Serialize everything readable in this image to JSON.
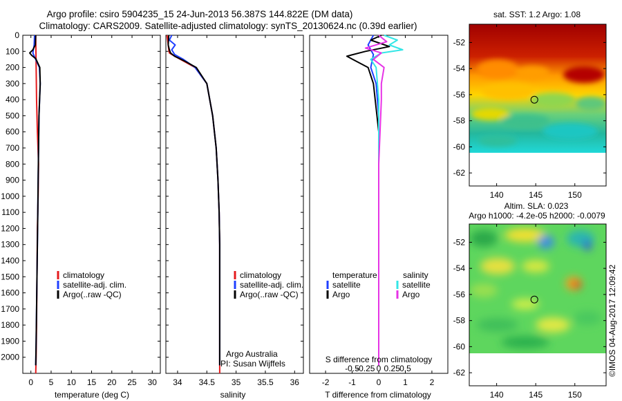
{
  "header": {
    "line1": "Argo profile: csiro 5904235_15 24-Jun-2013 56.387S 144.822E (DM data)",
    "line2": "Climatology: CARS2009. Satellite-adjusted climatology: synTS_20130624.nc (0.39d earlier)"
  },
  "watermark": "©IMOS 04-Aug-2017 12:09:42",
  "colors": {
    "climatology": "#e41a1c",
    "satellite": "#1f3fff",
    "argo": "#000000",
    "salinity_satellite": "#33e6e6",
    "salinity_argo": "#e633e6"
  },
  "chart_data": [
    {
      "type": "line",
      "xlabel": "temperature (deg C)",
      "xlim": [
        -2,
        32
      ],
      "ylim": [
        0,
        2100
      ],
      "xticks": [
        "0",
        "5",
        "10",
        "15",
        "20",
        "25",
        "30"
      ],
      "yticks": [
        "0",
        "100",
        "200",
        "300",
        "400",
        "500",
        "600",
        "700",
        "800",
        "900",
        "1000",
        "1100",
        "1200",
        "1300",
        "1400",
        "1500",
        "1600",
        "1700",
        "1800",
        "1900",
        "2000"
      ],
      "y_inverted": true,
      "legend": [
        "climatology",
        "satellite-adj. clim.",
        "Argo(..raw -QC)"
      ],
      "legend_placement": "lower-center",
      "series": [
        {
          "name": "climatology",
          "color": "climatology",
          "x": [
            1.2,
            1.3,
            1.4,
            1.6,
            1.9,
            1.8,
            1.6,
            1.5,
            1.4,
            1.3,
            1.2
          ],
          "y": [
            0,
            200,
            400,
            600,
            800,
            1000,
            1200,
            1500,
            1800,
            2000,
            2100
          ]
        },
        {
          "name": "satellite-adj. clim.",
          "color": "satellite",
          "x": [
            0.9,
            0.8,
            0.5,
            1.0,
            2.1,
            2.3,
            2.0,
            1.9,
            1.8,
            1.7,
            1.6,
            1.5,
            1.4,
            1.3,
            1.2
          ],
          "y": [
            0,
            60,
            110,
            140,
            200,
            300,
            500,
            700,
            900,
            1100,
            1300,
            1500,
            1700,
            1900,
            2050
          ]
        },
        {
          "name": "Argo(..raw -QC)",
          "color": "argo",
          "x": [
            1.2,
            1.1,
            0.5,
            -0.3,
            0.2,
            1.2,
            2.2,
            2.3,
            2.0,
            1.9,
            1.8,
            1.7,
            1.6,
            1.5,
            1.4,
            1.3,
            1.2
          ],
          "y": [
            0,
            60,
            90,
            110,
            125,
            145,
            200,
            300,
            500,
            700,
            900,
            1100,
            1300,
            1500,
            1700,
            1900,
            2050
          ]
        }
      ]
    },
    {
      "type": "line",
      "xlabel": "salinity",
      "xlim": [
        33.8,
        36.15
      ],
      "ylim": [
        0,
        2100
      ],
      "xticks": [
        "34",
        "34.5",
        "35",
        "35.5",
        "36"
      ],
      "y_inverted": true,
      "legend": [
        "climatology",
        "satellite-adj. clim.",
        "Argo(..raw -QC)"
      ],
      "legend_placement": "lower-center",
      "annotations": [
        "Argo Australia",
        "PI: Susan Wijffels"
      ],
      "series": [
        {
          "name": "climatology",
          "color": "climatology",
          "x": [
            33.82,
            33.84,
            33.85,
            33.86,
            33.95,
            34.1,
            34.3,
            34.5,
            34.6,
            34.66,
            34.69,
            34.71,
            34.72,
            34.72,
            34.72,
            34.72
          ],
          "y": [
            0,
            60,
            90,
            110,
            130,
            160,
            200,
            300,
            500,
            700,
            900,
            1100,
            1300,
            1500,
            1800,
            2100
          ]
        },
        {
          "name": "satellite-adj. clim.",
          "color": "satellite",
          "x": [
            33.9,
            33.86,
            33.96,
            33.9,
            33.95,
            34.1,
            34.3,
            34.5,
            34.6,
            34.66,
            34.69,
            34.71,
            34.72,
            34.72,
            34.72,
            34.72
          ],
          "y": [
            0,
            30,
            60,
            90,
            120,
            150,
            200,
            300,
            500,
            700,
            900,
            1100,
            1300,
            1500,
            1800,
            2050
          ]
        },
        {
          "name": "Argo(..raw -QC)",
          "color": "argo",
          "x": [
            33.85,
            33.84,
            33.86,
            33.88,
            33.95,
            34.12,
            34.32,
            34.5,
            34.6,
            34.66,
            34.69,
            34.71,
            34.72,
            34.72,
            34.72,
            34.72
          ],
          "y": [
            0,
            60,
            90,
            110,
            130,
            160,
            200,
            300,
            500,
            700,
            900,
            1100,
            1300,
            1500,
            1800,
            2050
          ]
        }
      ]
    },
    {
      "type": "line",
      "xlabel": "T difference from climatology",
      "xlabel_top": "S difference from climatology",
      "xlim": [
        -2.6,
        2.6
      ],
      "ylim": [
        0,
        2100
      ],
      "xticks": [
        "-2",
        "-1",
        "0",
        "1",
        "2"
      ],
      "xticks_top": [
        "-0.5",
        "-0.25",
        "0",
        "0.25",
        "0.5"
      ],
      "y_inverted": true,
      "legend": [
        "temperature",
        "satellite",
        "Argo",
        "salinity",
        "satellite",
        "Argo"
      ],
      "legend_placement": "lower-center",
      "series": [
        {
          "name": "satellite",
          "color": "satellite",
          "x": [
            -0.2,
            -0.4,
            -0.2,
            -0.3,
            -0.1,
            0.0,
            0.0,
            0.0,
            0.0
          ],
          "y": [
            0,
            60,
            120,
            200,
            300,
            500,
            1000,
            1500,
            2050
          ]
        },
        {
          "name": "Argo",
          "color": "argo",
          "x": [
            0.1,
            -0.3,
            0.4,
            -0.5,
            -1.2,
            -0.4,
            -0.2,
            0.0,
            0.0
          ],
          "y": [
            0,
            30,
            70,
            100,
            130,
            200,
            300,
            600,
            2050
          ]
        },
        {
          "name": "satellite",
          "color": "salinity_satellite",
          "x": [
            0.2,
            0.7,
            0.4,
            0.9,
            0.1,
            -0.3,
            -0.1,
            0.0,
            0.0,
            0.0
          ],
          "y": [
            0,
            30,
            60,
            90,
            110,
            150,
            200,
            400,
            1000,
            2050
          ]
        },
        {
          "name": "Argo",
          "color": "salinity_argo",
          "x": [
            0.0,
            0.3,
            -0.5,
            0.1,
            -0.2,
            0.2,
            0.1,
            0.1,
            0.0,
            0.0
          ],
          "y": [
            0,
            40,
            80,
            110,
            150,
            200,
            300,
            400,
            800,
            2050
          ]
        }
      ]
    },
    {
      "type": "heatmap",
      "title": "sat. SST: 1.2 Argo: 1.08",
      "xlim": [
        136.5,
        154
      ],
      "ylim": [
        -63,
        -50.6
      ],
      "xticks": [
        "140",
        "145",
        "150"
      ],
      "yticks": [
        "-52",
        "-54",
        "-56",
        "-58",
        "-60",
        "-62"
      ],
      "marker": {
        "x": 144.822,
        "y": -56.387
      },
      "colormap": "jet",
      "data_extent_y": [
        -60,
        -50.6
      ]
    },
    {
      "type": "heatmap",
      "title": "Altim. SLA: 0.023",
      "subtitle": "Argo h1000: -4.2e-05 h2000: -0.0079",
      "xlim": [
        136.5,
        154
      ],
      "ylim": [
        -63,
        -50.6
      ],
      "xticks": [
        "140",
        "145",
        "150"
      ],
      "yticks": [
        "-52",
        "-54",
        "-56",
        "-58",
        "-60",
        "-62"
      ],
      "marker": {
        "x": 144.822,
        "y": -56.387
      },
      "colormap": "jet",
      "data_extent_y": [
        -60,
        -50.6
      ]
    }
  ]
}
